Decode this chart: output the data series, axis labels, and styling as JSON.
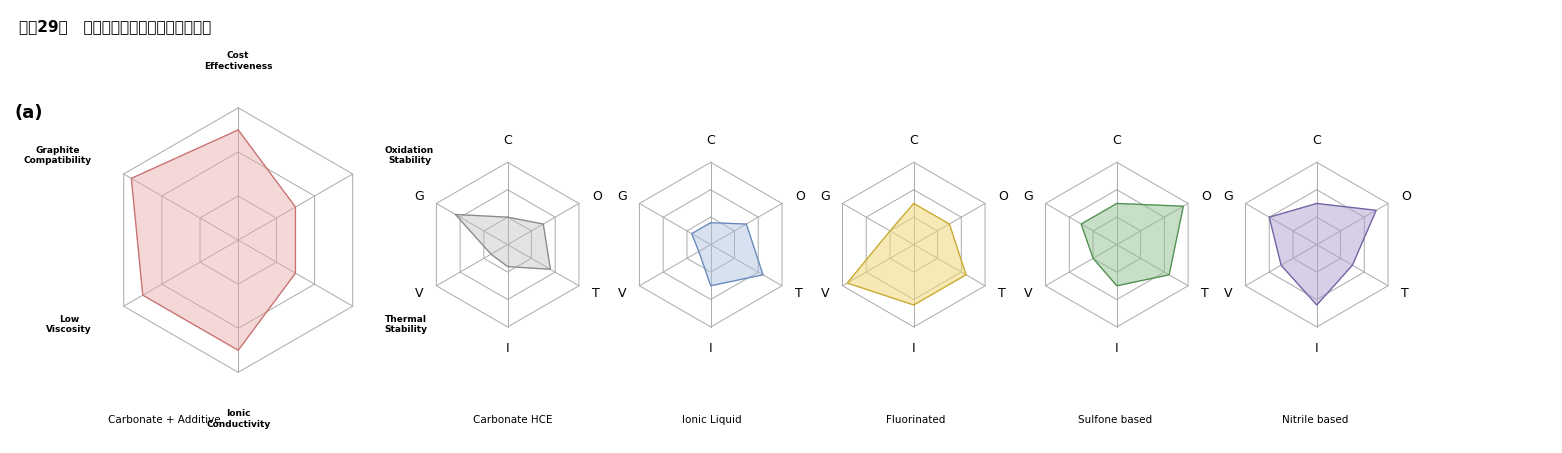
{
  "title": "图表29：   不同电解液溶剂体系的性能特征",
  "title_bar_color": "#2E75B6",
  "panel_label": "(a)",
  "categories_full": [
    "Cost\nEffectiveness",
    "Oxidation\nStability",
    "Thermal\nStability",
    "Ionic\nConductivity",
    "Low\nViscosity",
    "Graphite\nCompatibility"
  ],
  "categories_short": [
    "C",
    "O",
    "T",
    "I",
    "V",
    "G"
  ],
  "max_val": 3,
  "series": [
    {
      "name": "Carbonate + Additive",
      "values": [
        2.5,
        1.5,
        1.5,
        2.5,
        2.5,
        2.8
      ],
      "fill_color": "#E8AAAA",
      "fill_alpha": 0.45,
      "edge_color": "#C87070"
    },
    {
      "name": "Carbonate HCE",
      "values": [
        1.0,
        1.5,
        1.8,
        0.8,
        0.7,
        2.2
      ],
      "fill_color": "#BBBBBB",
      "fill_alpha": 0.4,
      "edge_color": "#888888"
    },
    {
      "name": "Ionic Liquid",
      "values": [
        0.8,
        1.5,
        2.2,
        1.5,
        0.5,
        0.8
      ],
      "fill_color": "#AABEDD",
      "fill_alpha": 0.45,
      "edge_color": "#6688BB"
    },
    {
      "name": "Fluorinated",
      "values": [
        1.5,
        1.5,
        2.2,
        2.2,
        2.8,
        1.0
      ],
      "fill_color": "#F0D878",
      "fill_alpha": 0.55,
      "edge_color": "#C8A830"
    },
    {
      "name": "Sulfone based",
      "values": [
        1.5,
        2.8,
        2.2,
        1.5,
        1.0,
        1.5
      ],
      "fill_color": "#90C090",
      "fill_alpha": 0.5,
      "edge_color": "#509050"
    },
    {
      "name": "Nitrile based",
      "values": [
        1.5,
        2.5,
        1.5,
        2.2,
        1.5,
        2.0
      ],
      "fill_color": "#B0A0D0",
      "fill_alpha": 0.5,
      "edge_color": "#7060A0"
    }
  ],
  "grid_color": "#AAAAAA",
  "grid_linewidth": 0.7,
  "spoke_color": "#AAAAAA",
  "bg_color": "#FFFFFF",
  "legend_colors": [
    "#F5C0C0",
    "#CCCCCC",
    "#C0D8F0",
    "#F5E890",
    "#B8DDB8",
    "#C8C0E0"
  ],
  "legend_labels": [
    "Carbonate + Additive",
    "Carbonate HCE",
    "Ionic Liquid",
    "Fluorinated",
    "Sulfone based",
    "Nitrile based"
  ]
}
